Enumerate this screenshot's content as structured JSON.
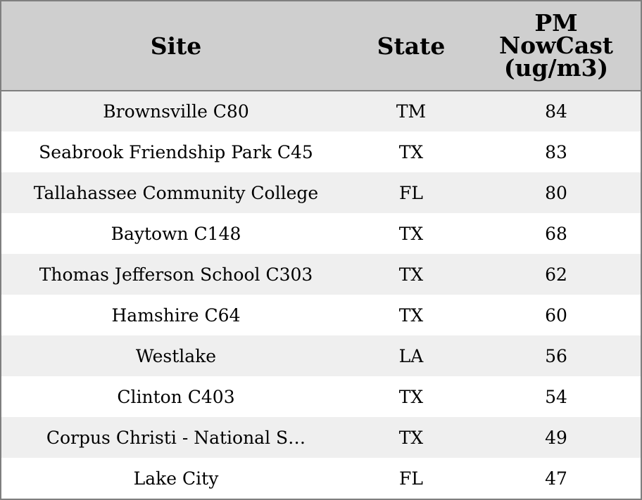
{
  "chart_data": {
    "type": "table",
    "columns": [
      "Site",
      "State",
      "PM NowCast (ug/m3)"
    ],
    "header_lines": {
      "site": "Site",
      "state": "State",
      "pm": [
        "PM",
        "NowCast",
        "(ug/m3)"
      ]
    },
    "rows": [
      {
        "site": "Brownsville C80",
        "state": "TM",
        "pm": "84"
      },
      {
        "site": "Seabrook Friendship Park C45",
        "state": "TX",
        "pm": "83"
      },
      {
        "site": "Tallahassee Community College",
        "state": "FL",
        "pm": "80"
      },
      {
        "site": "Baytown C148",
        "state": "TX",
        "pm": "68"
      },
      {
        "site": "Thomas Jefferson School C303",
        "state": "TX",
        "pm": "62"
      },
      {
        "site": "Hamshire C64",
        "state": "TX",
        "pm": "60"
      },
      {
        "site": "Westlake",
        "state": "LA",
        "pm": "56"
      },
      {
        "site": "Clinton C403",
        "state": "TX",
        "pm": "54"
      },
      {
        "site": "Corpus Christi - National S…",
        "state": "TX",
        "pm": "49"
      },
      {
        "site": "Lake City",
        "state": "FL",
        "pm": "47"
      }
    ],
    "colors": {
      "header_bg": "#cfcfcf",
      "row_alt_bg": "#efefef",
      "row_bg": "#ffffff",
      "border": "#7f7f7f"
    }
  }
}
